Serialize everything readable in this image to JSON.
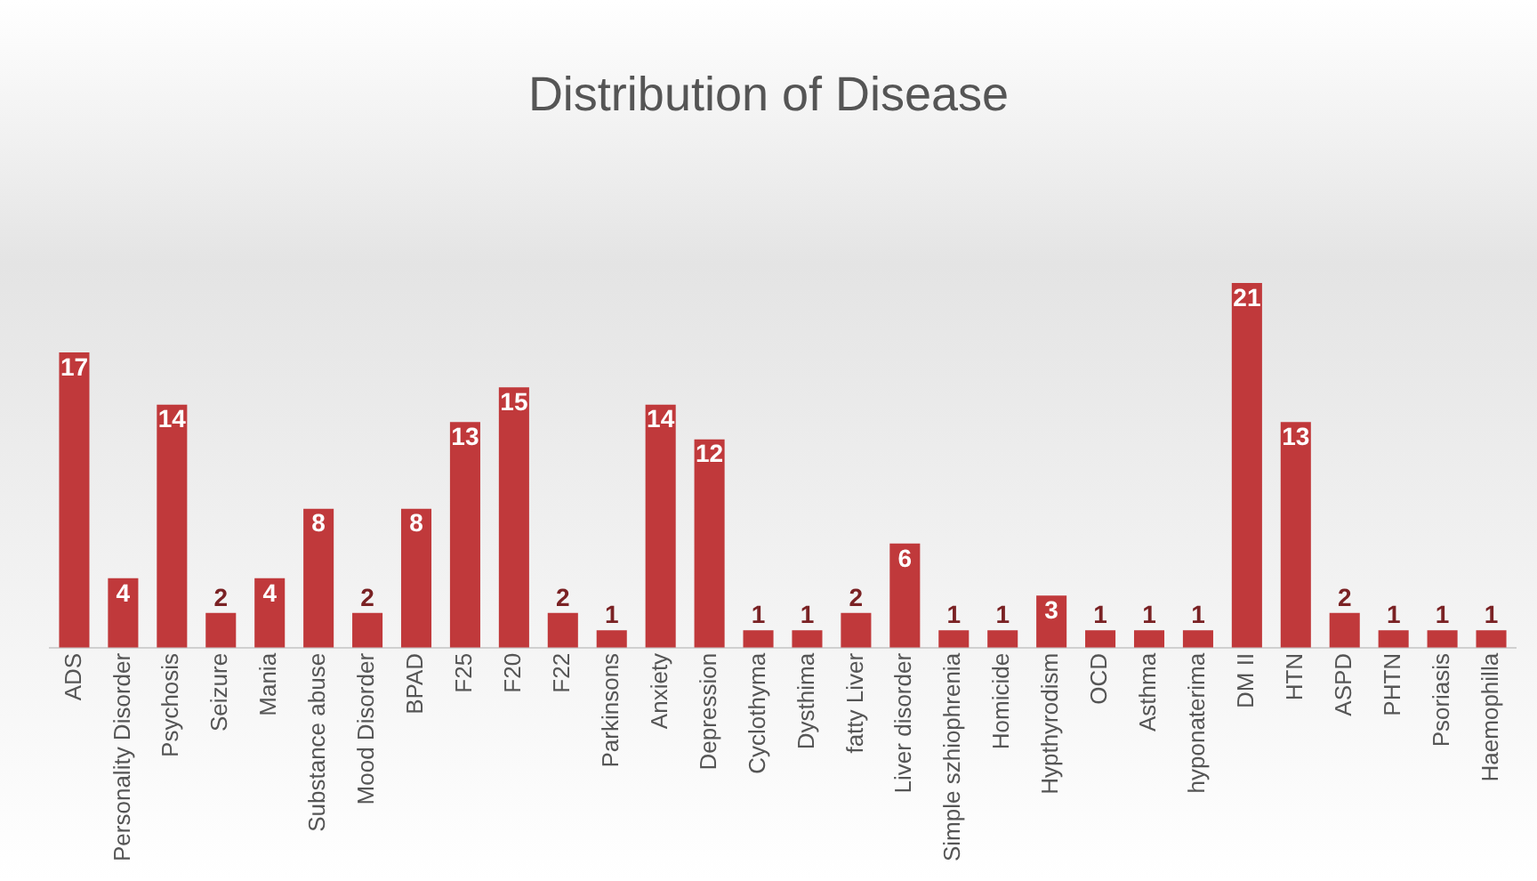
{
  "chart_data": {
    "type": "bar",
    "title": "Distribution of Disease",
    "categories": [
      "ADS",
      "Personality Disorder",
      "Psychosis",
      "Seizure",
      "Mania",
      "Substance abuse",
      "Mood Disorder",
      "BPAD",
      "F25",
      "F20",
      "F22",
      "Parkinsons",
      "Anxiety",
      "Depression",
      "Cyclothyma",
      "Dysthima",
      "fatty Liver",
      "Liver disorder",
      "Simple szhiophrenia",
      "Homicide",
      "Hypthyrodism",
      "OCD",
      "Asthma",
      "hyponaterima",
      "DM II",
      "HTN",
      "ASPD",
      "PHTN",
      "Psoriasis",
      "Haemophilla"
    ],
    "values": [
      17,
      4,
      14,
      2,
      4,
      8,
      2,
      8,
      13,
      15,
      2,
      1,
      14,
      12,
      1,
      1,
      2,
      6,
      1,
      1,
      3,
      1,
      1,
      1,
      21,
      13,
      2,
      1,
      1,
      1
    ],
    "color": "#c0393b",
    "data_labels": true,
    "grid": false,
    "legend": false
  }
}
